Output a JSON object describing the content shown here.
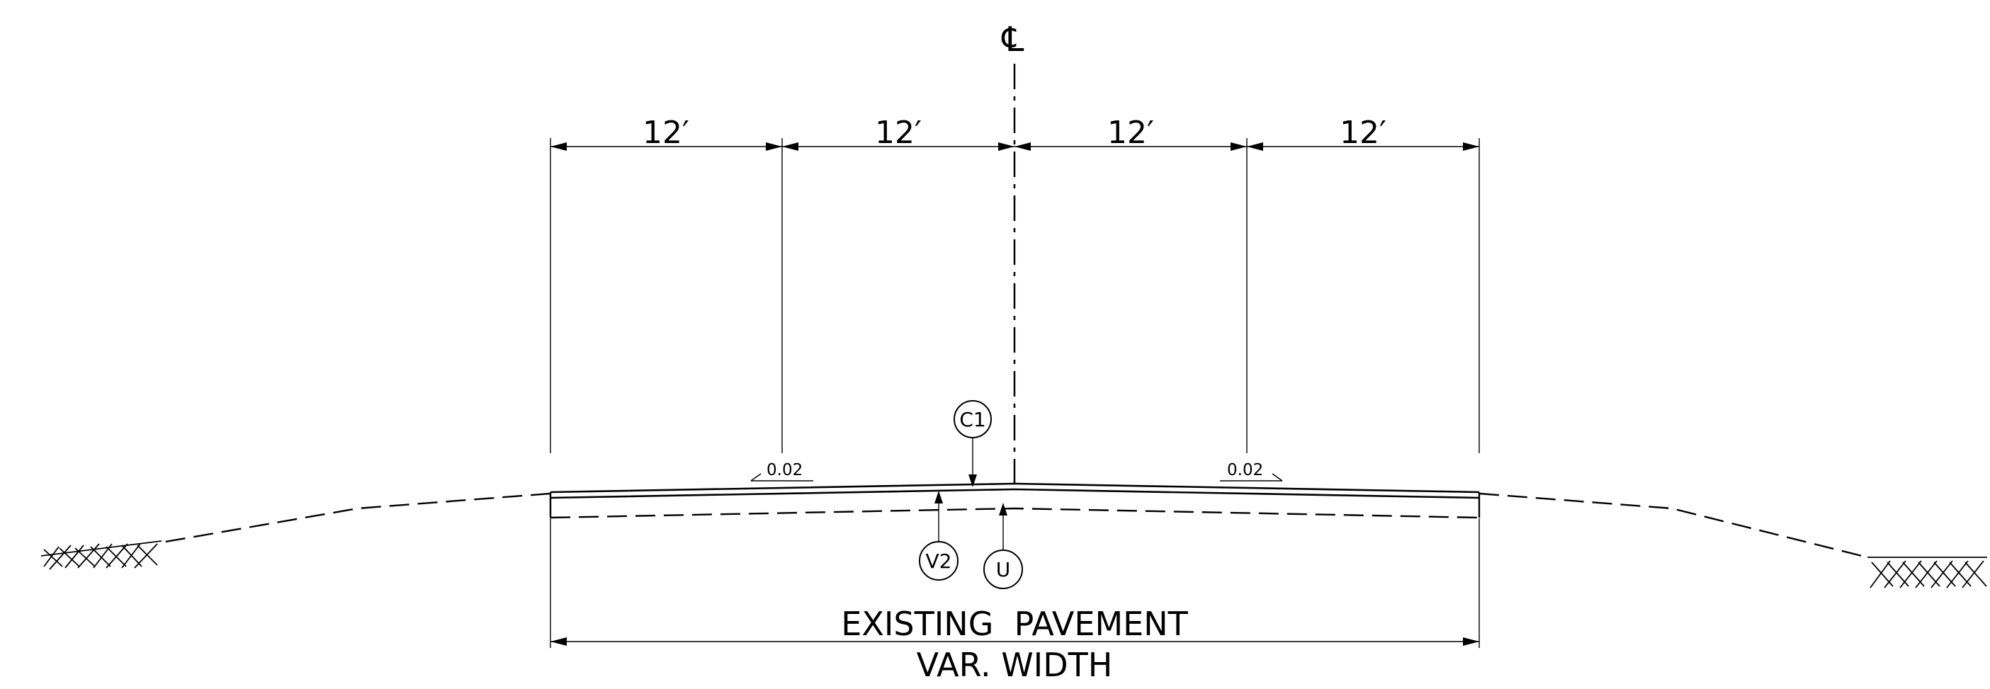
{
  "centerline": {
    "symbol": "℄"
  },
  "lane_widths": [
    "12′",
    "12′",
    "12′",
    "12′"
  ],
  "slopes": {
    "left": "0.02",
    "right": "0.02"
  },
  "callouts": {
    "c1": "C1",
    "v2": "V2",
    "u": "U"
  },
  "labels": {
    "existing_pavement": "EXISTING  PAVEMENT",
    "var_width": "VAR. WIDTH"
  }
}
